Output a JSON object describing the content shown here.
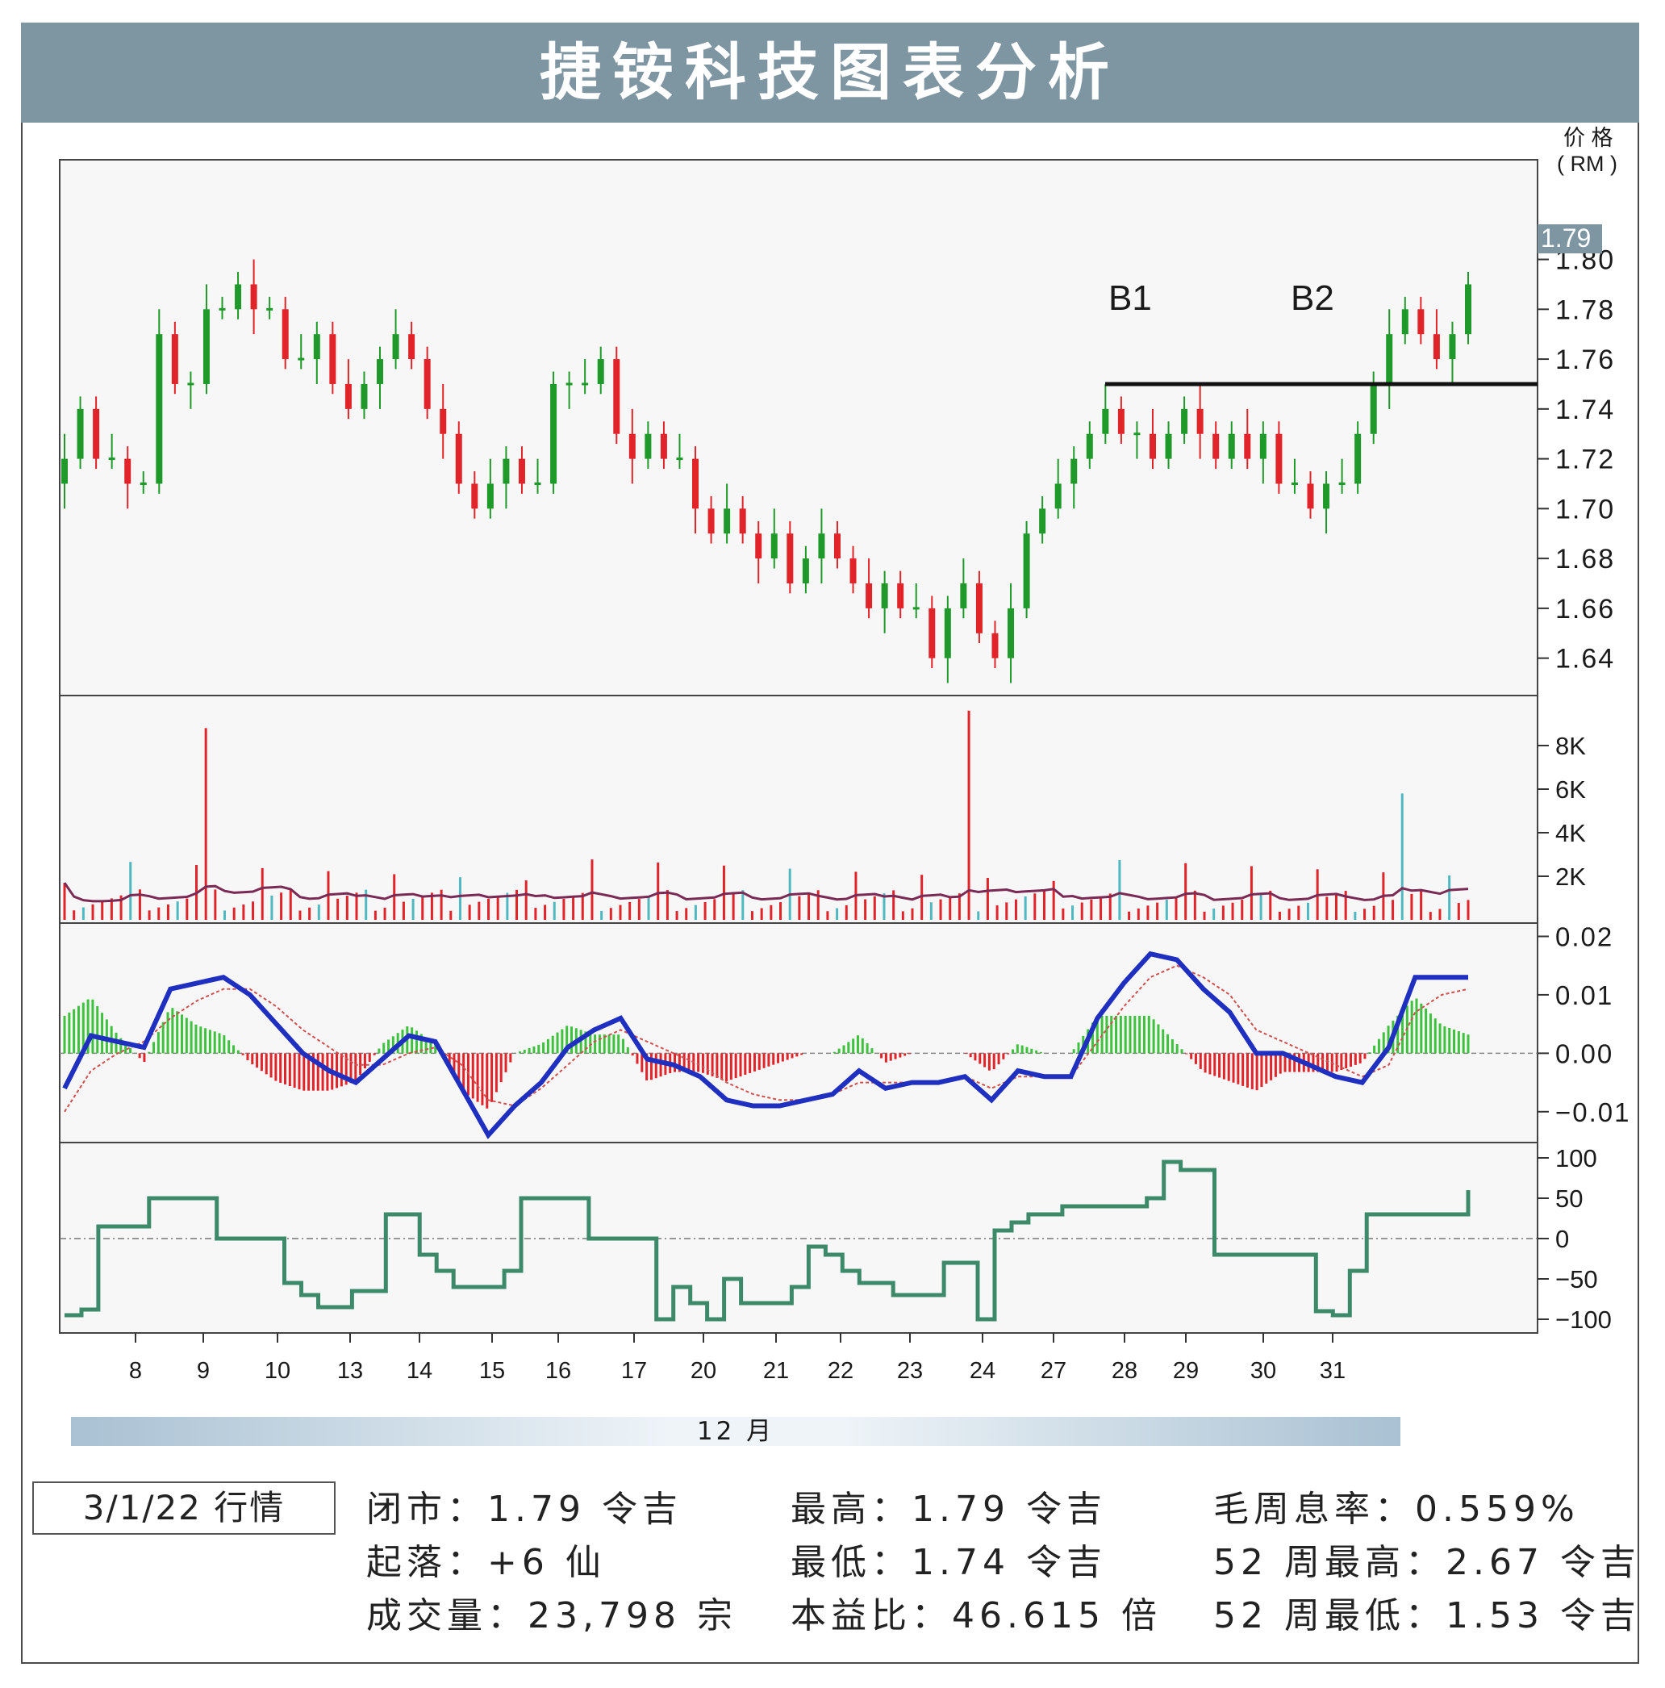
{
  "title": "捷铵科技图表分析",
  "price_unit_label_1": "价 格",
  "price_unit_label_2": "( RM )",
  "last_price_tag": "1.79",
  "month_label": "12 月",
  "date_label": "3/1/22 行情",
  "stats": {
    "close": "闭市：1.79 令吉",
    "change": "起落：+6 仙",
    "volume": "成交量：23,798 宗",
    "high": "最高：1.79 令吉",
    "low": "最低：1.74 令吉",
    "pe": "本益比：46.615 倍",
    "yield": "毛周息率：0.559%",
    "high52": "52 周最高：2.67 令吉",
    "low52": "52 周最低：1.53 令吉"
  },
  "colors": {
    "up": "#1f9a2a",
    "down": "#e0242a",
    "macd_line": "#1f2fbf",
    "signal_line": "#d05050",
    "volume_ma": "#7a2a55",
    "osc": "#3d8a6a",
    "header": "#7e95a2"
  },
  "chart_data": [
    {
      "type": "candlestick",
      "panel": "price",
      "ylabel": "价格 (RM)",
      "ylim": [
        1.625,
        1.84
      ],
      "yticks": [
        1.64,
        1.66,
        1.68,
        1.7,
        1.72,
        1.74,
        1.76,
        1.78,
        1.8
      ],
      "xticks": [
        "8",
        "9",
        "10",
        "13",
        "14",
        "15",
        "16",
        "17",
        "20",
        "21",
        "22",
        "23",
        "24",
        "27",
        "28",
        "29",
        "30",
        "31"
      ],
      "annotations": [
        "B1",
        "B2"
      ],
      "resistance_level": 1.75,
      "close_path": [
        1.72,
        1.74,
        1.72,
        1.72,
        1.71,
        1.71,
        1.77,
        1.75,
        1.75,
        1.78,
        1.78,
        1.79,
        1.78,
        1.78,
        1.76,
        1.76,
        1.77,
        1.75,
        1.74,
        1.75,
        1.76,
        1.77,
        1.76,
        1.74,
        1.73,
        1.71,
        1.7,
        1.71,
        1.72,
        1.71,
        1.71,
        1.75,
        1.75,
        1.75,
        1.76,
        1.73,
        1.72,
        1.73,
        1.72,
        1.72,
        1.7,
        1.69,
        1.7,
        1.69,
        1.68,
        1.69,
        1.67,
        1.68,
        1.69,
        1.68,
        1.67,
        1.66,
        1.67,
        1.66,
        1.66,
        1.64,
        1.66,
        1.67,
        1.65,
        1.64,
        1.66,
        1.69,
        1.7,
        1.71,
        1.72,
        1.73,
        1.74,
        1.73,
        1.73,
        1.72,
        1.73,
        1.74,
        1.73,
        1.72,
        1.73,
        1.72,
        1.73,
        1.71,
        1.71,
        1.7,
        1.71,
        1.71,
        1.73,
        1.75,
        1.77,
        1.78,
        1.77,
        1.76,
        1.77,
        1.79
      ]
    },
    {
      "type": "bar",
      "panel": "volume",
      "ylim": [
        0,
        10000
      ],
      "yticks": [
        2000,
        4000,
        6000,
        8000
      ],
      "ytick_labels": [
        "2K",
        "4K",
        "6K",
        "8K"
      ],
      "notable_spikes": [
        {
          "x": "9",
          "value": 8800
        },
        {
          "x": "24",
          "value": 9600
        },
        {
          "x": "31",
          "value": 5800
        }
      ]
    },
    {
      "type": "line",
      "panel": "macd",
      "ylim": [
        -0.015,
        0.022
      ],
      "yticks": [
        -0.01,
        0.0,
        0.01,
        0.02
      ],
      "ytick_labels": [
        "−0.01",
        "0.00",
        "0.01",
        "0.02"
      ],
      "macd": [
        -0.006,
        0.003,
        0.002,
        0.001,
        0.011,
        0.012,
        0.013,
        0.01,
        0.005,
        0.0,
        -0.003,
        -0.005,
        -0.001,
        0.003,
        0.002,
        -0.006,
        -0.014,
        -0.009,
        -0.005,
        0.001,
        0.004,
        0.006,
        -0.001,
        -0.002,
        -0.004,
        -0.008,
        -0.009,
        -0.009,
        -0.008,
        -0.007,
        -0.003,
        -0.006,
        -0.005,
        -0.005,
        -0.004,
        -0.008,
        -0.003,
        -0.004,
        -0.004,
        0.006,
        0.012,
        0.017,
        0.016,
        0.011,
        0.007,
        0.0,
        0.0,
        -0.002,
        -0.004,
        -0.005,
        0.001,
        0.013,
        0.013,
        0.013
      ],
      "signal": [
        -0.01,
        -0.003,
        0.0,
        0.002,
        0.006,
        0.009,
        0.011,
        0.011,
        0.008,
        0.004,
        0.001,
        -0.002,
        -0.002,
        0.0,
        0.001,
        -0.002,
        -0.008,
        -0.009,
        -0.006,
        -0.002,
        0.002,
        0.004,
        0.002,
        0.0,
        -0.002,
        -0.005,
        -0.007,
        -0.008,
        -0.008,
        -0.007,
        -0.005,
        -0.005,
        -0.005,
        -0.005,
        -0.004,
        -0.006,
        -0.004,
        -0.004,
        -0.004,
        0.002,
        0.008,
        0.013,
        0.015,
        0.013,
        0.01,
        0.004,
        0.002,
        0.0,
        -0.002,
        -0.004,
        -0.002,
        0.007,
        0.01,
        0.011
      ]
    },
    {
      "type": "line",
      "panel": "oscillator",
      "ylim": [
        -115,
        115
      ],
      "yticks": [
        -100,
        -50,
        0,
        50,
        100
      ],
      "ytick_labels": [
        "−100",
        "−50",
        "0",
        "50",
        "100"
      ],
      "values": [
        -95,
        -88,
        15,
        15,
        15,
        50,
        50,
        50,
        50,
        0,
        0,
        0,
        0,
        -55,
        -70,
        -85,
        -85,
        -65,
        -65,
        30,
        30,
        -20,
        -40,
        -60,
        -60,
        -60,
        -40,
        50,
        50,
        50,
        50,
        0,
        0,
        0,
        0,
        -100,
        -60,
        -80,
        -100,
        -50,
        -80,
        -80,
        -80,
        -60,
        -10,
        -20,
        -40,
        -55,
        -55,
        -70,
        -70,
        -70,
        -30,
        -30,
        -100,
        10,
        20,
        30,
        30,
        40,
        40,
        40,
        40,
        40,
        50,
        95,
        85,
        85,
        -20,
        -20,
        -20,
        -20,
        -20,
        -20,
        -90,
        -95,
        -40,
        30,
        30,
        30,
        30,
        30,
        30,
        60
      ]
    }
  ]
}
